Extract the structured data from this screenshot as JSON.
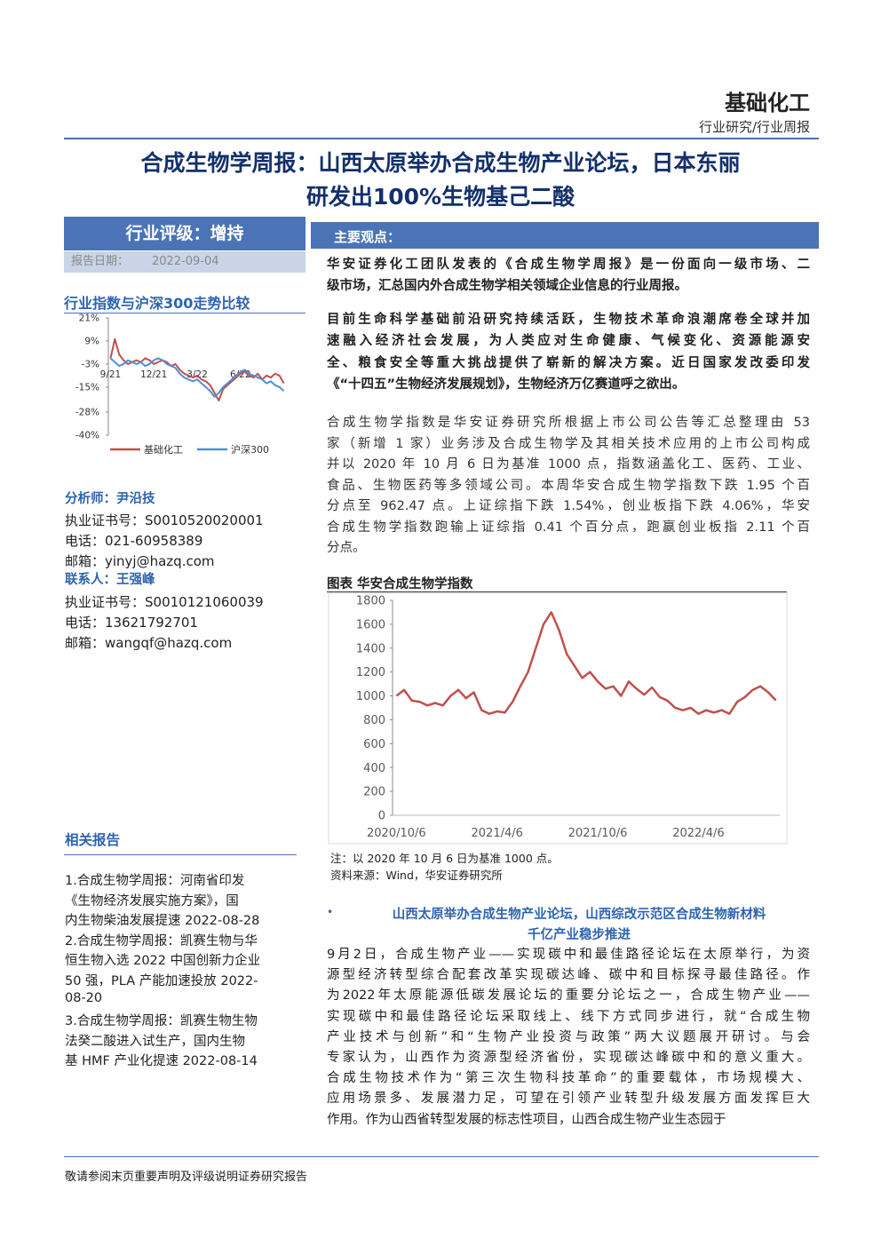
{
  "header": {
    "sector": "基础化工",
    "category": "行业研究/行业周报"
  },
  "title": [
    "合成生物学周报：山西太原举办合成生物产业论坛，日本东丽",
    "研发出100%生物基己二酸"
  ],
  "rating": {
    "label": "行业评级：增持",
    "date_label": "报告日期：",
    "date": "2022-09-04"
  },
  "analysts": [
    {
      "role": "分析师：尹沿技",
      "license": "执业证书号：S0010520020001",
      "phone": "电话：021-60958389",
      "email": "邮箱：yinyj@hazq.com"
    },
    {
      "role": "联系人：王强峰",
      "license": "执业证书号：S0010121060039",
      "phone": "电话：13621792701",
      "email": "邮箱：wangqf@hazq.com"
    }
  ],
  "related": {
    "title": "相关报告",
    "lines": [
      "1.合成生物学周报：河南省印发",
      "《生物经济发展实施方案》，国",
      "内生物柴油发展提速 2022-08-28",
      "2.合成生物学周报：凯赛生物与华",
      "恒生物入选 2022 中国创新力企业",
      "50 强，PLA 产能加速投放 2022-",
      "08-20",
      "3.合成生物学周报：凯赛生物生物",
      "法癸二酸进入试生产，国内生物",
      "基 HMF 产业化提速 2022-08-14"
    ]
  },
  "key_points": {
    "title": "主要观点：",
    "paragraphs": [
      [
        "华安证券化工团队发表的《合成生物学周报》是一份面向一级市场、二",
        "级市场，汇总国内外合成生物学相关领域企业信息的行业周报。"
      ],
      [
        "目前生命科学基础前沿研究持续活跃，生物技术革命浪潮席卷全球并加",
        "速融入经济社会发展，为人类应对生命健康、气候变化、资源能源安",
        "全、粮食安全等重大挑战提供了崭新的解决方案。近日国家发改委印发",
        "《“十四五”生物经济发展规划》，生物经济万亿赛道呼之欲出。"
      ],
      [
        "合成生物学指数是华安证券研究所根据上市公司公告等汇总整理由 53",
        "家（新增 1 家）业务涉及合成生物学及其相关技术应用的上市公司构成",
        "并以 2020 年 10 月 6 日为基准 1000 点，指数涵盖化工、医药、工业、",
        "食品、生物医药等多领域公司。本周华安合成生物学指数下跌 1.95 个百",
        "分点至 962.47 点。上证综指下跌 1.54%，创业板指下跌 4.06%，华安",
        "合成生物学指数跑输上证综指 0.41 个百分点，跑赢创业板指 2.11 个百",
        "分点。"
      ]
    ]
  },
  "news": {
    "heading": [
      "山西太原举办合成生物产业论坛，山西综改示范区合成生物新材料",
      "千亿产业稳步推进"
    ],
    "lines": [
      "9月2日，合成生物产业——实现碳中和最佳路径论坛在太原举行，为资",
      "源型经济转型综合配套改革实现碳达峰、碳中和目标探寻最佳路径。作",
      "为2022年太原能源低碳发展论坛的重要分论坛之一，合成生物产业——",
      "实现碳中和最佳路径论坛采取线上、线下方式同步进行，就“合成生物",
      "产业技术与创新”和“生物产业投资与政策”两大议题展开研讨。与会",
      "专家认为，山西作为资源型经济省份，实现碳达峰碳中和的意义重大。",
      "合成生物技术作为“第三次生物科技革命”的重要载体，市场规模大、",
      "应用场景多、发展潜力足，可望在引领产业转型升级发展方面发挥巨大",
      "作用。作为山西省转型发展的标志性项目，山西合成生物产业生态园于"
    ]
  },
  "chart_data": [
    {
      "type": "line",
      "title": "行业指数与沪深300走势比较",
      "categories": [
        "9/21",
        null,
        null,
        null,
        null,
        null,
        null,
        null,
        null,
        null,
        "12/21",
        null,
        null,
        null,
        null,
        null,
        null,
        null,
        null,
        null,
        "3/22",
        null,
        null,
        null,
        null,
        null,
        null,
        null,
        null,
        null,
        "6/22",
        null,
        null,
        null,
        null,
        null,
        null,
        null,
        null,
        null,
        null
      ],
      "series": [
        {
          "name": "基础化工",
          "color": "#c0504d",
          "values": [
            0,
            10,
            2,
            -1,
            -3,
            -2,
            -1,
            -2,
            0,
            -1,
            -3,
            -2,
            -1,
            -2,
            -4,
            -3,
            -6,
            -8,
            -9,
            -10,
            -9,
            -11,
            -12,
            -14,
            -18,
            -22,
            -16,
            -14,
            -12,
            -10,
            -8,
            -7,
            -9,
            -10,
            -8,
            -11,
            -9,
            -10,
            -8,
            -9,
            -13
          ]
        },
        {
          "name": "沪深300",
          "color": "#4f8fd6",
          "values": [
            0,
            -2,
            -4,
            -3,
            -1,
            -2,
            -3,
            -2,
            -4,
            -3,
            -1,
            0,
            -1,
            -3,
            -4,
            -5,
            -8,
            -10,
            -11,
            -12,
            -11,
            -13,
            -15,
            -17,
            -20,
            -18,
            -15,
            -13,
            -11,
            -9,
            -7,
            -6,
            -8,
            -9,
            -10,
            -11,
            -13,
            -12,
            -14,
            -15,
            -17
          ]
        }
      ],
      "ylim": [
        -40,
        21
      ],
      "yticks": [
        {
          "value": 21,
          "label": "21%"
        },
        {
          "value": 9,
          "label": "9%"
        },
        {
          "value": -3,
          "label": "-3%"
        },
        {
          "value": -15,
          "label": "-15%"
        },
        {
          "value": -28,
          "label": "-28%"
        },
        {
          "value": -40,
          "label": "-40%"
        }
      ],
      "legend": "bottom",
      "grid": false
    },
    {
      "type": "line",
      "title": "图表 华安合成生物学指数",
      "categories": [
        "2020/10/6",
        null,
        null,
        null,
        null,
        null,
        null,
        null,
        null,
        null,
        null,
        null,
        null,
        "2021/4/6",
        null,
        null,
        null,
        null,
        null,
        null,
        null,
        null,
        null,
        null,
        null,
        null,
        "2021/10/6",
        null,
        null,
        null,
        null,
        null,
        null,
        null,
        null,
        null,
        null,
        null,
        null,
        "2022/4/6",
        null,
        null,
        null,
        null,
        null,
        null,
        null,
        null,
        null,
        null
      ],
      "values": [
        1000,
        1050,
        960,
        950,
        920,
        940,
        920,
        1000,
        1050,
        980,
        1030,
        880,
        850,
        870,
        860,
        950,
        1080,
        1200,
        1400,
        1600,
        1700,
        1550,
        1350,
        1250,
        1150,
        1200,
        1120,
        1060,
        1080,
        1000,
        1120,
        1060,
        1010,
        1070,
        990,
        960,
        900,
        880,
        900,
        850,
        880,
        860,
        880,
        850,
        950,
        990,
        1050,
        1080,
        1030,
        962.47
      ],
      "color": "#c0504d",
      "ylim": [
        0,
        1800
      ],
      "yticks": [
        0,
        200,
        400,
        600,
        800,
        1000,
        1200,
        1400,
        1600,
        1800
      ],
      "grid": false,
      "note": "注：以 2020 年 10 月 6 日为基准 1000 点。",
      "source": "资料来源：Wind，华安证券研究所"
    }
  ],
  "footer": "敬请参阅末页重要声明及评级说明证券研究报告"
}
